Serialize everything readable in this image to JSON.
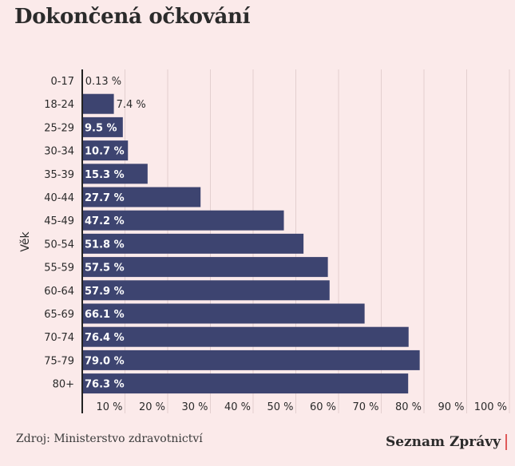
{
  "title": "Dokončená očkování",
  "source": "Zdroj: Ministerstvo zdravotnictví",
  "brand": "Seznam Zprávy",
  "colors": {
    "bar": "#3d4470",
    "background": "#fbeaea",
    "grid": "#e3cfcf",
    "axis": "#222222"
  },
  "chart_data": {
    "type": "bar",
    "orientation": "horizontal",
    "ylabel": "Věk",
    "xlabel": "",
    "xlim": [
      0,
      100
    ],
    "x_ticks": [
      10,
      20,
      30,
      40,
      50,
      60,
      70,
      80,
      90,
      100
    ],
    "tick_suffix": " %",
    "categories": [
      "0-17",
      "18-24",
      "25-29",
      "30-34",
      "35-39",
      "40-44",
      "45-49",
      "50-54",
      "55-59",
      "60-64",
      "65-69",
      "70-74",
      "75-79",
      "80+"
    ],
    "values": [
      0.13,
      7.4,
      9.5,
      10.7,
      15.3,
      27.7,
      47.2,
      51.8,
      57.5,
      57.9,
      66.1,
      76.4,
      79.0,
      76.3
    ],
    "data_labels": [
      "0.13 %",
      "7.4 %",
      "9.5 %",
      "10.7 %",
      "15.3 %",
      "27.7 %",
      "47.2 %",
      "51.8 %",
      "57.5 %",
      "57.9 %",
      "66.1 %",
      "76.4 %",
      "79.0 %",
      "76.3 %"
    ],
    "grid": true
  }
}
